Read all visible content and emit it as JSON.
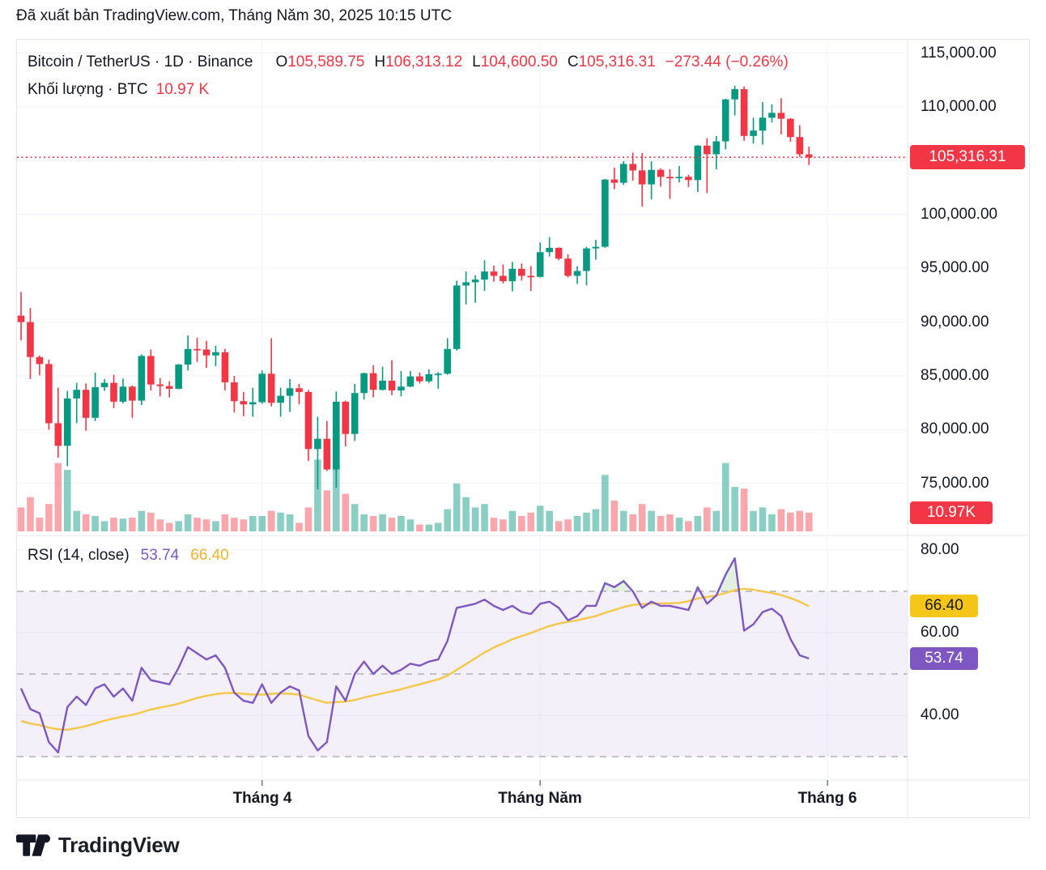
{
  "header": {
    "published_line": "Đã xuất bản TradingView.com, Tháng Năm 30, 2025 10:15 UTC"
  },
  "legend": {
    "symbol_line": "Bitcoin / TetherUS · 1D · Binance",
    "ohlc": {
      "o_label": "O",
      "o": "105,589.75",
      "h_label": "H",
      "h": "106,313.12",
      "l_label": "L",
      "l": "104,600.50",
      "c_label": "C",
      "c": "105,316.31",
      "change": "−273.44 (−0.26%)"
    },
    "volume_line": {
      "label": "Khối lượng · BTC",
      "value": "10.97 K"
    }
  },
  "price_axis": {
    "labels": [
      "115,000.00",
      "110,000.00",
      "100,000.00",
      "95,000.00",
      "90,000.00",
      "85,000.00",
      "80,000.00",
      "75,000.00"
    ],
    "gridline_values": [
      115000,
      110000,
      105000,
      100000,
      95000,
      90000,
      85000,
      80000,
      75000
    ],
    "price_badge": "105,316.31",
    "volume_badge": "10.97K"
  },
  "rsi_panel": {
    "title": "RSI (14, close)",
    "value": "53.74",
    "ma_value": "66.40",
    "axis_labels": [
      {
        "text": "80.00",
        "value": 80
      },
      {
        "text": "60.00",
        "value": 60
      },
      {
        "text": "40.00",
        "value": 40
      }
    ],
    "levels": {
      "upper": 70,
      "middle": 50,
      "lower": 30
    },
    "badges": {
      "ma": "66.40",
      "rsi": "53.74"
    }
  },
  "time_axis": {
    "labels": [
      {
        "text": "Tháng 4",
        "index": 26
      },
      {
        "text": "Tháng Năm",
        "index": 56
      },
      {
        "text": "Tháng 6",
        "index": 87
      }
    ]
  },
  "footer": {
    "brand": "TradingView"
  },
  "colors": {
    "up": "#089981",
    "down": "#F23645",
    "vol_up": "rgba(8,153,129,0.47)",
    "vol_down": "rgba(242,54,69,0.44)",
    "rsi_line": "#7E57C2",
    "rsi_ma_line": "#F5C749",
    "rsi_band": "rgba(126,87,194,0.09)",
    "overbought_fill": "rgba(67,160,71,0.16)",
    "grid": "#F0F3FA",
    "separator": "#E4E7EE",
    "dashed_level": "#A2A5AE",
    "text": "#131722"
  },
  "chart_data": {
    "type": "candlestick+volume+rsi",
    "symbol": "Bitcoin / TetherUS",
    "exchange": "Binance",
    "interval": "1D",
    "last_date": "2025-05-30",
    "last_price": 105316.31,
    "price_axis_range_visible": [
      75000,
      115000
    ],
    "volume_unit": "K BTC",
    "open": [
      90600,
      90000,
      86750,
      86100,
      80600,
      78500,
      82900,
      83700,
      81100,
      83950,
      84350,
      82600,
      84000,
      82700,
      86850,
      84200,
      84050,
      83800,
      86050,
      87500,
      87450,
      86900,
      87200,
      84400,
      82650,
      82350,
      82550,
      85200,
      82500,
      83150,
      83850,
      83500,
      78200,
      79150,
      76300,
      82600,
      79600,
      83400,
      85250,
      83700,
      84550,
      83650,
      84000,
      84950,
      84500,
      85150,
      85200,
      87500,
      93400,
      93700,
      93950,
      94700,
      94300,
      93800,
      94950,
      94300,
      94200,
      96500,
      96900,
      95900,
      94300,
      94750,
      96850,
      97000,
      103250,
      102950,
      104700,
      104100,
      102800,
      104150,
      103500,
      103450,
      103500,
      103200,
      106400,
      105600,
      106800,
      110700,
      111650,
      107300,
      107800,
      109000,
      109450,
      108900,
      107200,
      105589.75
    ],
    "high": [
      92800,
      91300,
      86900,
      86500,
      83900,
      83600,
      84350,
      84300,
      85300,
      84700,
      85100,
      84750,
      84100,
      87000,
      87450,
      84800,
      84500,
      86100,
      88750,
      88550,
      88250,
      87800,
      87500,
      85000,
      83500,
      83900,
      85500,
      88500,
      83900,
      84700,
      84250,
      83700,
      81200,
      80800,
      83550,
      82700,
      84250,
      85300,
      86000,
      85850,
      86450,
      85450,
      85450,
      85300,
      85600,
      85350,
      88500,
      93850,
      94700,
      94350,
      95750,
      95250,
      95350,
      95600,
      95450,
      95200,
      97400,
      97900,
      96950,
      96300,
      95200,
      97000,
      97650,
      103300,
      104350,
      104950,
      105750,
      105700,
      104950,
      104300,
      104200,
      104500,
      103700,
      106450,
      107100,
      107300,
      110750,
      111960,
      111900,
      109000,
      110450,
      110250,
      110800,
      108950,
      108300,
      106313.12
    ],
    "low": [
      88300,
      84700,
      85050,
      80000,
      77400,
      76600,
      80600,
      79900,
      80800,
      83600,
      82000,
      82450,
      81100,
      82300,
      83650,
      83100,
      83000,
      83750,
      85500,
      86300,
      85750,
      85900,
      83650,
      81600,
      81250,
      81200,
      82400,
      82150,
      81200,
      81650,
      82350,
      77100,
      74450,
      76150,
      74600,
      78450,
      78950,
      82800,
      83000,
      83650,
      83200,
      83100,
      83950,
      84300,
      84350,
      83800,
      85100,
      87350,
      91650,
      91800,
      92900,
      93750,
      93600,
      92850,
      93850,
      92900,
      94150,
      96100,
      95750,
      94150,
      93550,
      93400,
      95800,
      96900,
      102350,
      102750,
      103150,
      100750,
      101400,
      102600,
      101450,
      103000,
      102550,
      102100,
      102000,
      104200,
      106050,
      109200,
      106850,
      106600,
      106500,
      108550,
      107450,
      106750,
      105350,
      104600.5
    ],
    "close": [
      90000,
      86750,
      86100,
      80600,
      78500,
      82900,
      83700,
      81100,
      83950,
      84350,
      82600,
      84000,
      82700,
      86850,
      84200,
      84050,
      83800,
      86050,
      87500,
      87450,
      86900,
      87200,
      84400,
      82650,
      82350,
      82550,
      85200,
      82500,
      83150,
      83850,
      83500,
      78200,
      79150,
      76300,
      82600,
      79600,
      83400,
      85250,
      83700,
      84550,
      83650,
      84000,
      84950,
      84500,
      85150,
      85200,
      87500,
      93400,
      93700,
      93950,
      94700,
      94300,
      93800,
      94950,
      94300,
      94200,
      96500,
      96900,
      95900,
      94300,
      94750,
      96850,
      97000,
      103250,
      102950,
      104700,
      104100,
      102800,
      104150,
      103500,
      103450,
      103500,
      103200,
      106400,
      105600,
      106800,
      110700,
      111650,
      107300,
      107800,
      109000,
      109450,
      108900,
      107200,
      105600,
      105316.31
    ],
    "volume_k": [
      14,
      20,
      8,
      16,
      40,
      36,
      12,
      10,
      9,
      6,
      8,
      7.5,
      8,
      12,
      11,
      7,
      5,
      6,
      10,
      8,
      7,
      6,
      10,
      8,
      7,
      9,
      9,
      12,
      11,
      10,
      5,
      14,
      42,
      24,
      40,
      22,
      16,
      10,
      9,
      10,
      8,
      9,
      7,
      4,
      4,
      5,
      13,
      28,
      20,
      14,
      16,
      8,
      7,
      12,
      9,
      11,
      15,
      12,
      6,
      7,
      9,
      11,
      13,
      33,
      18,
      12,
      10,
      16,
      12,
      9,
      10,
      8,
      6,
      9,
      14,
      12,
      40,
      26,
      25,
      12,
      14,
      10,
      13,
      11,
      12,
      10.97
    ],
    "rsi": [
      46.5,
      41.5,
      40.5,
      33.5,
      31,
      42,
      44.5,
      42.5,
      46.5,
      47.5,
      44.5,
      46.5,
      43.5,
      51.5,
      48.5,
      48,
      47.5,
      51.5,
      56.5,
      55,
      53.5,
      54.5,
      51.5,
      45.5,
      43.5,
      43,
      47.5,
      43,
      45.5,
      47,
      46,
      35,
      31.5,
      33.5,
      47,
      43.5,
      50,
      53,
      50,
      52,
      50,
      51,
      52.5,
      52,
      53,
      53.5,
      58,
      66,
      66.5,
      67,
      68,
      66.5,
      65.5,
      66.5,
      65,
      64.5,
      67,
      67.5,
      66,
      63,
      64,
      66.5,
      66.5,
      72,
      71,
      72.5,
      70,
      66,
      67.5,
      66.5,
      66.5,
      66,
      65.5,
      71,
      67,
      69,
      74,
      78,
      60.5,
      62,
      65,
      65.8,
      64,
      58.5,
      54.5,
      53.74
    ],
    "rsi_ma": [
      38.6,
      38,
      37.6,
      37,
      36.6,
      36.5,
      36.9,
      37.4,
      38,
      38.7,
      39.2,
      39.7,
      40.1,
      40.7,
      41.4,
      41.9,
      42.3,
      42.8,
      43.5,
      44.2,
      44.7,
      45.1,
      45.4,
      45.4,
      45.2,
      45,
      45,
      45.2,
      45.3,
      45.2,
      45,
      44.3,
      43.6,
      43,
      43.2,
      43.3,
      43.7,
      44.3,
      44.8,
      45.3,
      45.8,
      46.3,
      46.9,
      47.5,
      48.1,
      48.7,
      49.6,
      51,
      52.4,
      53.8,
      55.2,
      56.4,
      57.4,
      58.4,
      59.2,
      59.9,
      60.8,
      61.6,
      62.2,
      62.6,
      63,
      63.5,
      64,
      64.8,
      65.5,
      66.2,
      66.7,
      66.9,
      67,
      67.1,
      67.1,
      67.2,
      67.6,
      68.3,
      68.6,
      69,
      69.6,
      70.3,
      70.6,
      70.4,
      70,
      69.6,
      69.1,
      68.4,
      67.5,
      66.4
    ]
  }
}
